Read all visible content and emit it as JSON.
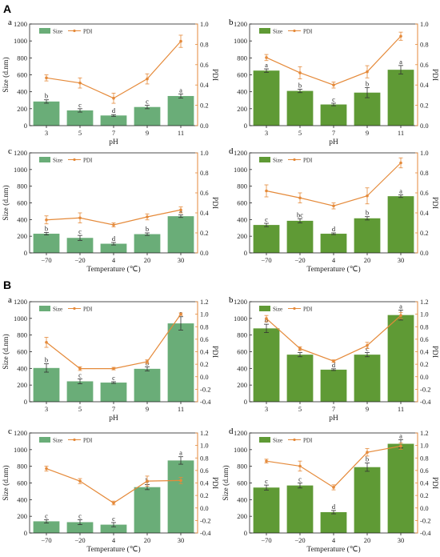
{
  "colors": {
    "bar_light": "#6aad78",
    "bar_dark": "#5f9a35",
    "pdi": "#e58a3a",
    "right_axis": "#e58a3a",
    "bar_error": "#333333"
  },
  "sections": [
    "A",
    "B"
  ],
  "chart_data": [
    {
      "section": "A",
      "panel": "a",
      "type": "bar+line",
      "bar_style": "light",
      "categories": [
        "3",
        "5",
        "7",
        "9",
        "11"
      ],
      "xlabel": "pH",
      "ylabel": "Size (d.nm)",
      "y2label": "PDI",
      "ylim": [
        0,
        1200
      ],
      "yticks": [
        0,
        200,
        400,
        600,
        800,
        1000,
        1200
      ],
      "y2lim": [
        0,
        1.0
      ],
      "y2ticks": [
        "0.0",
        "0.2",
        "0.4",
        "0.6",
        "0.8",
        "1.0"
      ],
      "legend": [
        "Size",
        "PDI"
      ],
      "series": [
        {
          "name": "Size",
          "kind": "bar",
          "values": [
            285,
            180,
            120,
            220,
            350
          ],
          "errors": [
            20,
            20,
            10,
            20,
            25
          ]
        },
        {
          "name": "PDI",
          "kind": "line",
          "values": [
            0.47,
            0.42,
            0.27,
            0.46,
            0.83
          ],
          "errors": [
            0.03,
            0.05,
            0.05,
            0.05,
            0.06
          ]
        }
      ],
      "significance": [
        "b",
        "c",
        "d",
        "c",
        "a"
      ]
    },
    {
      "section": "A",
      "panel": "b",
      "type": "bar+line",
      "bar_style": "dark",
      "categories": [
        "3",
        "5",
        "7",
        "9",
        "11"
      ],
      "xlabel": "pH",
      "ylabel": "",
      "y2label": "PDI",
      "ylim": [
        0,
        1200
      ],
      "yticks": [
        0,
        200,
        400,
        600,
        800,
        1000,
        1200
      ],
      "y2lim": [
        0,
        1.0
      ],
      "y2ticks": [
        "0.0",
        "0.2",
        "0.4",
        "0.6",
        "0.8",
        "1.0"
      ],
      "legend": [
        "Size",
        "PDI"
      ],
      "series": [
        {
          "name": "Size",
          "kind": "bar",
          "values": [
            650,
            410,
            250,
            390,
            660
          ],
          "errors": [
            20,
            20,
            15,
            60,
            50
          ]
        },
        {
          "name": "PDI",
          "kind": "line",
          "values": [
            0.67,
            0.52,
            0.4,
            0.53,
            0.88
          ],
          "errors": [
            0.03,
            0.06,
            0.03,
            0.06,
            0.04
          ]
        }
      ],
      "significance": [
        "a",
        "b",
        "c",
        "b",
        "a"
      ]
    },
    {
      "section": "A",
      "panel": "c",
      "type": "bar+line",
      "bar_style": "light",
      "categories": [
        "−70",
        "−20",
        "4",
        "20",
        "30"
      ],
      "xlabel": "Temperature (℃)",
      "ylabel": "Size (d.nm)",
      "y2label": "PDI",
      "ylim": [
        0,
        1200
      ],
      "yticks": [
        0,
        200,
        400,
        600,
        800,
        1000,
        1200
      ],
      "y2lim": [
        0,
        1.0
      ],
      "y2ticks": [
        "0.0",
        "0.2",
        "0.4",
        "0.6",
        "0.8",
        "1.0"
      ],
      "legend": [
        "Size",
        "PDI"
      ],
      "series": [
        {
          "name": "Size",
          "kind": "bar",
          "values": [
            230,
            180,
            110,
            225,
            440
          ],
          "errors": [
            15,
            30,
            15,
            15,
            15
          ]
        },
        {
          "name": "PDI",
          "kind": "line",
          "values": [
            0.33,
            0.35,
            0.28,
            0.36,
            0.43
          ],
          "errors": [
            0.04,
            0.05,
            0.02,
            0.03,
            0.03
          ]
        }
      ],
      "significance": [
        "b",
        "c",
        "d",
        "b",
        "a"
      ]
    },
    {
      "section": "A",
      "panel": "d",
      "type": "bar+line",
      "bar_style": "dark",
      "categories": [
        "−70",
        "−20",
        "4",
        "20",
        "30"
      ],
      "xlabel": "Temperature (℃)",
      "ylabel": "",
      "y2label": "PDI",
      "ylim": [
        0,
        1200
      ],
      "yticks": [
        0,
        200,
        400,
        600,
        800,
        1000,
        1200
      ],
      "y2lim": [
        0,
        1.0
      ],
      "y2ticks": [
        "0.0",
        "0.2",
        "0.4",
        "0.6",
        "0.8",
        "1.0"
      ],
      "legend": [
        "Size",
        "PDI"
      ],
      "series": [
        {
          "name": "Size",
          "kind": "bar",
          "values": [
            335,
            385,
            230,
            415,
            680
          ],
          "errors": [
            20,
            25,
            10,
            20,
            15
          ]
        },
        {
          "name": "PDI",
          "kind": "line",
          "values": [
            0.62,
            0.55,
            0.47,
            0.57,
            0.9
          ],
          "errors": [
            0.06,
            0.05,
            0.03,
            0.08,
            0.05
          ]
        }
      ],
      "significance": [
        "c",
        "bc",
        "d",
        "b",
        "a"
      ]
    },
    {
      "section": "B",
      "panel": "a",
      "type": "bar+line",
      "bar_style": "light",
      "categories": [
        "3",
        "5",
        "7",
        "9",
        "11"
      ],
      "xlabel": "pH",
      "ylabel": "Size (d.nm)",
      "y2label": "PDI",
      "ylim": [
        0,
        1200
      ],
      "yticks": [
        0,
        200,
        400,
        600,
        800,
        1000,
        1200
      ],
      "y2lim": [
        -0.4,
        1.2
      ],
      "y2ticks": [
        "-0.4",
        "-0.2",
        "0.0",
        "0.2",
        "0.4",
        "0.6",
        "0.8",
        "1.0",
        "1.2"
      ],
      "legend": [
        "Size",
        "PDI"
      ],
      "series": [
        {
          "name": "Size",
          "kind": "bar",
          "values": [
            405,
            245,
            230,
            395,
            940
          ],
          "errors": [
            50,
            30,
            10,
            25,
            80
          ]
        },
        {
          "name": "PDI",
          "kind": "line",
          "values": [
            0.55,
            0.13,
            0.13,
            0.24,
            1.0
          ],
          "errors": [
            0.08,
            0.03,
            0.02,
            0.03,
            0.02
          ]
        }
      ],
      "significance": [
        "b",
        "c",
        "c",
        "b",
        "a"
      ]
    },
    {
      "section": "B",
      "panel": "b",
      "type": "bar+line",
      "bar_style": "dark",
      "categories": [
        "3",
        "5",
        "7",
        "9",
        "11"
      ],
      "xlabel": "pH",
      "ylabel": "",
      "y2label": "PDI",
      "ylim": [
        0,
        1200
      ],
      "yticks": [
        0,
        200,
        400,
        600,
        800,
        1000,
        1200
      ],
      "y2lim": [
        -0.4,
        1.2
      ],
      "y2ticks": [
        "-0.4",
        "-0.2",
        "0.0",
        "0.2",
        "0.4",
        "0.6",
        "0.8",
        "1.0",
        "1.2"
      ],
      "legend": [
        "Size",
        "PDI"
      ],
      "series": [
        {
          "name": "Size",
          "kind": "bar",
          "values": [
            880,
            565,
            385,
            565,
            1040
          ],
          "errors": [
            50,
            25,
            10,
            25,
            60
          ]
        },
        {
          "name": "PDI",
          "kind": "line",
          "values": [
            0.93,
            0.45,
            0.25,
            0.5,
            0.98
          ],
          "errors": [
            0.05,
            0.03,
            0.02,
            0.05,
            0.05
          ]
        }
      ],
      "significance": [
        "b",
        "c",
        "d",
        "c",
        "a"
      ]
    },
    {
      "section": "B",
      "panel": "c",
      "type": "bar+line",
      "bar_style": "light",
      "categories": [
        "−70",
        "−20",
        "4",
        "20",
        "30"
      ],
      "xlabel": "Temperature (℃)",
      "ylabel": "Size (d.nm)",
      "y2label": "PDI",
      "ylim": [
        0,
        1200
      ],
      "yticks": [
        0,
        200,
        400,
        600,
        800,
        1000,
        1200
      ],
      "y2lim": [
        -0.4,
        1.2
      ],
      "y2ticks": [
        "-0.4",
        "-0.2",
        "0.0",
        "0.2",
        "0.4",
        "0.6",
        "0.8",
        "1.0",
        "1.2"
      ],
      "legend": [
        "Size",
        "PDI"
      ],
      "series": [
        {
          "name": "Size",
          "kind": "bar",
          "values": [
            140,
            130,
            100,
            550,
            870
          ],
          "errors": [
            20,
            30,
            25,
            30,
            45
          ]
        },
        {
          "name": "PDI",
          "kind": "line",
          "values": [
            0.63,
            0.43,
            0.08,
            0.43,
            0.44
          ],
          "errors": [
            0.04,
            0.04,
            0.03,
            0.08,
            0.05
          ]
        }
      ],
      "significance": [
        "c",
        "c",
        "c",
        "b",
        "a"
      ]
    },
    {
      "section": "B",
      "panel": "d",
      "type": "bar+line",
      "bar_style": "dark",
      "categories": [
        "−70",
        "−20",
        "4",
        "20",
        "30"
      ],
      "xlabel": "Temperature (℃)",
      "ylabel": "Size (d.nm)",
      "y2label": "PDI",
      "ylim": [
        0,
        1200
      ],
      "yticks": [
        0,
        200,
        400,
        600,
        800,
        1000,
        1200
      ],
      "y2lim": [
        -0.4,
        1.2
      ],
      "y2ticks": [
        "-0.4",
        "-0.2",
        "0.0",
        "0.2",
        "0.4",
        "0.6",
        "0.8",
        "1.0",
        "1.2"
      ],
      "legend": [
        "Size",
        "PDI"
      ],
      "series": [
        {
          "name": "Size",
          "kind": "bar",
          "values": [
            545,
            570,
            250,
            790,
            1070
          ],
          "errors": [
            30,
            30,
            20,
            50,
            50
          ]
        },
        {
          "name": "PDI",
          "kind": "line",
          "values": [
            0.75,
            0.67,
            0.33,
            0.89,
            0.99
          ],
          "errors": [
            0.03,
            0.08,
            0.04,
            0.06,
            0.05
          ]
        }
      ],
      "significance": [
        "c",
        "c",
        "d",
        "b",
        "a"
      ]
    }
  ]
}
